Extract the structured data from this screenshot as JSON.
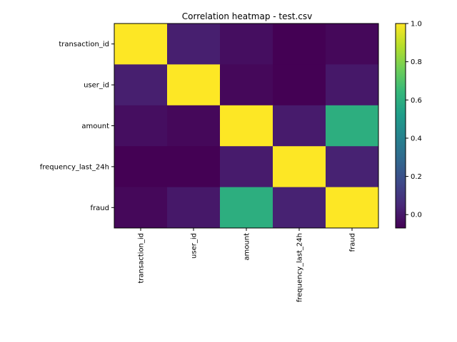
{
  "chart_data": {
    "type": "heatmap",
    "title": "Correlation heatmap - test.csv",
    "xlabel": "",
    "ylabel": "",
    "columns": [
      "transaction_id",
      "user_id",
      "amount",
      "frequency_last_24h",
      "fraud"
    ],
    "rows": [
      "transaction_id",
      "user_id",
      "amount",
      "frequency_last_24h",
      "fraud"
    ],
    "values": [
      [
        1.0,
        0.02,
        -0.03,
        -0.07,
        -0.05
      ],
      [
        0.02,
        1.0,
        -0.05,
        -0.07,
        0.0
      ],
      [
        -0.03,
        -0.05,
        1.0,
        0.01,
        0.6
      ],
      [
        -0.07,
        -0.07,
        0.01,
        1.0,
        0.03
      ],
      [
        -0.05,
        0.0,
        0.6,
        0.03,
        1.0
      ]
    ],
    "colormap": "viridis",
    "vmin": -0.07,
    "vmax": 1.0,
    "colorbar_ticks": [
      0.0,
      0.2,
      0.4,
      0.6,
      0.8,
      1.0
    ],
    "colorbar_tick_labels": [
      "0.0",
      "0.2",
      "0.4",
      "0.6",
      "0.8",
      "1.0"
    ],
    "grid": false,
    "legend": "colorbar-right"
  }
}
